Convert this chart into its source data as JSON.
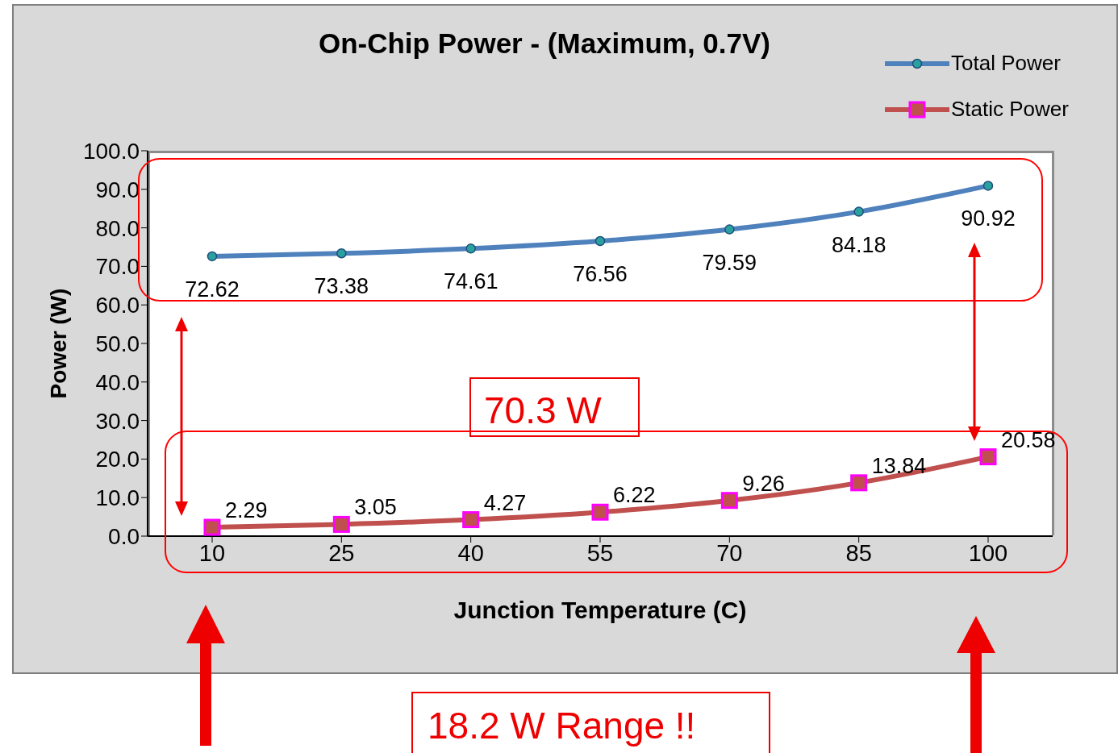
{
  "chart_data": {
    "type": "line",
    "title": "On-Chip Power - (Maximum, 0.7V)",
    "xlabel": "Junction Temperature (C)",
    "ylabel": "Power (W)",
    "categories": [
      "10",
      "25",
      "40",
      "55",
      "70",
      "85",
      "100"
    ],
    "series": [
      {
        "name": "Total Power",
        "color": "#4f81bd",
        "marker": "circle",
        "values": [
          72.62,
          73.38,
          74.61,
          76.56,
          79.59,
          84.18,
          90.92
        ]
      },
      {
        "name": "Static Power",
        "color": "#c0504d",
        "marker": "square",
        "values": [
          2.29,
          3.05,
          4.27,
          6.22,
          9.26,
          13.84,
          20.58
        ]
      }
    ],
    "ylim": [
      0,
      100
    ],
    "yticks": [
      {
        "value": 0,
        "label": "0.0"
      },
      {
        "value": 10,
        "label": "10.0"
      },
      {
        "value": 20,
        "label": "20.0"
      },
      {
        "value": 30,
        "label": "30.0"
      },
      {
        "value": 40,
        "label": "40.0"
      },
      {
        "value": 50,
        "label": "50.0"
      },
      {
        "value": 60,
        "label": "60.0"
      },
      {
        "value": 70,
        "label": "70.0"
      },
      {
        "value": 80,
        "label": "80.0"
      },
      {
        "value": 90,
        "label": "90.0"
      },
      {
        "value": 100,
        "label": "100.0"
      }
    ],
    "grid": false,
    "legend": "top right",
    "data_labels": true,
    "line_style": "solid",
    "annotations": [
      "70.3 W",
      "18.2 W Range !!"
    ]
  }
}
